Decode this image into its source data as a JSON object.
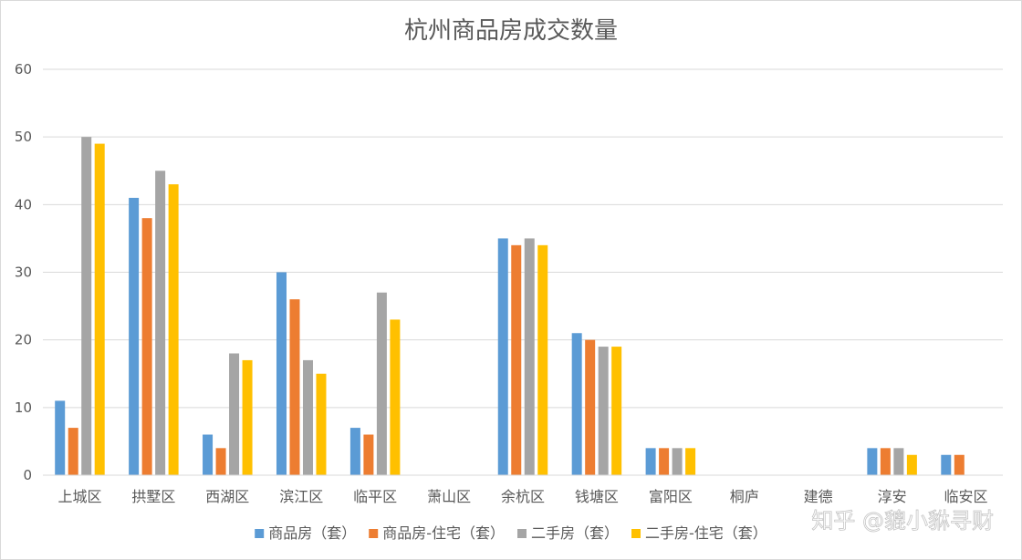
{
  "chart_data": {
    "type": "bar",
    "title": "杭州商品房成交数量",
    "xlabel": "",
    "ylabel": "",
    "ylim": [
      0,
      60
    ],
    "yticks": [
      0,
      10,
      20,
      30,
      40,
      50,
      60
    ],
    "grid": true,
    "legend_position": "bottom",
    "categories": [
      "上城区",
      "拱墅区",
      "西湖区",
      "滨江区",
      "临平区",
      "萧山区",
      "余杭区",
      "钱塘区",
      "富阳区",
      "桐庐",
      "建德",
      "淳安",
      "临安区"
    ],
    "series": [
      {
        "name": "商品房（套）",
        "color": "#5b9bd5",
        "values": [
          11,
          41,
          6,
          30,
          7,
          0,
          35,
          21,
          4,
          0,
          0,
          4,
          3
        ]
      },
      {
        "name": "商品房-住宅（套）",
        "color": "#ed7d31",
        "values": [
          7,
          38,
          4,
          26,
          6,
          0,
          34,
          20,
          4,
          0,
          0,
          4,
          3
        ]
      },
      {
        "name": "二手房（套）",
        "color": "#a5a5a5",
        "values": [
          50,
          45,
          18,
          17,
          27,
          0,
          35,
          19,
          4,
          0,
          0,
          4,
          0
        ]
      },
      {
        "name": "二手房-住宅（套）",
        "color": "#ffc000",
        "values": [
          49,
          43,
          17,
          15,
          23,
          0,
          34,
          19,
          4,
          0,
          0,
          3,
          0
        ]
      }
    ]
  },
  "watermark": "知乎 @貔小貅寻财",
  "colors": {
    "grid": "#d9d9d9",
    "axis": "#d9d9d9",
    "text": "#595959"
  }
}
